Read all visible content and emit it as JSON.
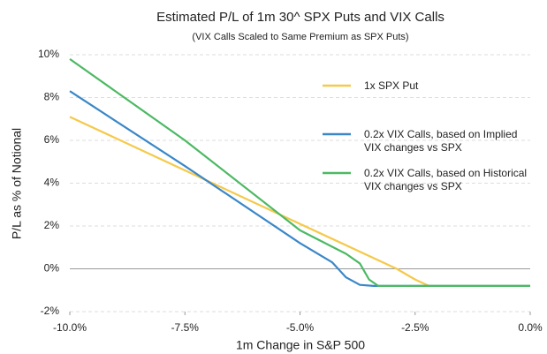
{
  "chart_data": {
    "type": "line",
    "title": "Estimated P/L of 1m 30^ SPX Puts and VIX Calls",
    "subtitle": "(VIX Calls Scaled to Same Premium as SPX Puts)",
    "x_label": "1m Change in S&P 500",
    "y_label": "P/L as % of Notional",
    "xlim": [
      -10,
      0
    ],
    "ylim": [
      -2,
      10
    ],
    "xticks": [
      {
        "value": -10,
        "label": "-10.0%"
      },
      {
        "value": -7.5,
        "label": "-7.5%"
      },
      {
        "value": -5,
        "label": "-5.0%"
      },
      {
        "value": -2.5,
        "label": "-2.5%"
      },
      {
        "value": 0,
        "label": "0.0%"
      }
    ],
    "yticks": [
      {
        "value": -2,
        "label": "-2%"
      },
      {
        "value": 0,
        "label": "0%"
      },
      {
        "value": 2,
        "label": "2%"
      },
      {
        "value": 4,
        "label": "4%"
      },
      {
        "value": 6,
        "label": "6%"
      },
      {
        "value": 8,
        "label": "8%"
      },
      {
        "value": 10,
        "label": "10%"
      }
    ],
    "grid": true,
    "series": [
      {
        "name": "1x SPX Put",
        "color": "#f5c94a",
        "x": [
          -10,
          -7.5,
          -5,
          -2.9,
          -2.5,
          -2.2,
          0
        ],
        "values": [
          7.1,
          4.6,
          2.1,
          0,
          -0.5,
          -0.8,
          -0.8
        ]
      },
      {
        "name": "0.2x VIX Calls, based on Implied VIX changes vs SPX",
        "color": "#3a87c8",
        "x": [
          -10,
          -7.5,
          -5,
          -4.3,
          -4,
          -3.7,
          -3.4,
          0
        ],
        "values": [
          8.3,
          4.8,
          1.2,
          0.3,
          -0.4,
          -0.75,
          -0.8,
          -0.8
        ]
      },
      {
        "name": "0.2x VIX Calls, based on Historical VIX changes vs SPX",
        "color": "#4cb963",
        "x": [
          -10,
          -7.5,
          -5,
          -4,
          -3.7,
          -3.5,
          -3.3,
          0
        ],
        "values": [
          9.8,
          6.0,
          1.8,
          0.7,
          0.25,
          -0.5,
          -0.8,
          -0.8
        ]
      }
    ]
  }
}
